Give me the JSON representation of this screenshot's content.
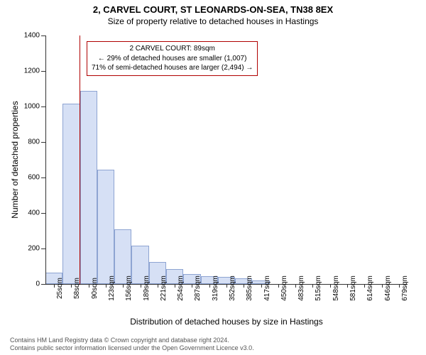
{
  "title_main": "2, CARVEL COURT, ST LEONARDS-ON-SEA, TN38 8EX",
  "title_sub": "Size of property relative to detached houses in Hastings",
  "y_label": "Number of detached properties",
  "x_label": "Distribution of detached houses by size in Hastings",
  "footer_line1": "Contains HM Land Registry data © Crown copyright and database right 2024.",
  "footer_line2": "Contains public sector information licensed under the Open Government Licence v3.0.",
  "chart": {
    "type": "histogram",
    "background_color": "#ffffff",
    "axis_color": "#333333",
    "bar_fill": "#d6e0f5",
    "bar_stroke": "#8ea4d2",
    "marker_color": "#b00000",
    "ylim": [
      0,
      1400
    ],
    "yticks": [
      0,
      200,
      400,
      600,
      800,
      1000,
      1200,
      1400
    ],
    "x_categories": [
      "25sqm",
      "58sqm",
      "90sqm",
      "123sqm",
      "156sqm",
      "189sqm",
      "221sqm",
      "254sqm",
      "287sqm",
      "319sqm",
      "352sqm",
      "385sqm",
      "417sqm",
      "450sqm",
      "483sqm",
      "515sqm",
      "548sqm",
      "581sqm",
      "614sqm",
      "646sqm",
      "679sqm"
    ],
    "values": [
      65,
      1015,
      1090,
      645,
      310,
      215,
      125,
      85,
      55,
      45,
      40,
      32,
      22,
      0,
      0,
      0,
      0,
      0,
      0,
      0,
      0
    ],
    "marker_value_sqm": 89,
    "bin_start": 25,
    "bin_width": 32.65,
    "annotation": {
      "line1": "2 CARVEL COURT: 89sqm",
      "line2": "← 29% of detached houses are smaller (1,007)",
      "line3": "71% of semi-detached houses are larger (2,494) →",
      "border_color": "#b00000",
      "font_size": 10
    }
  }
}
